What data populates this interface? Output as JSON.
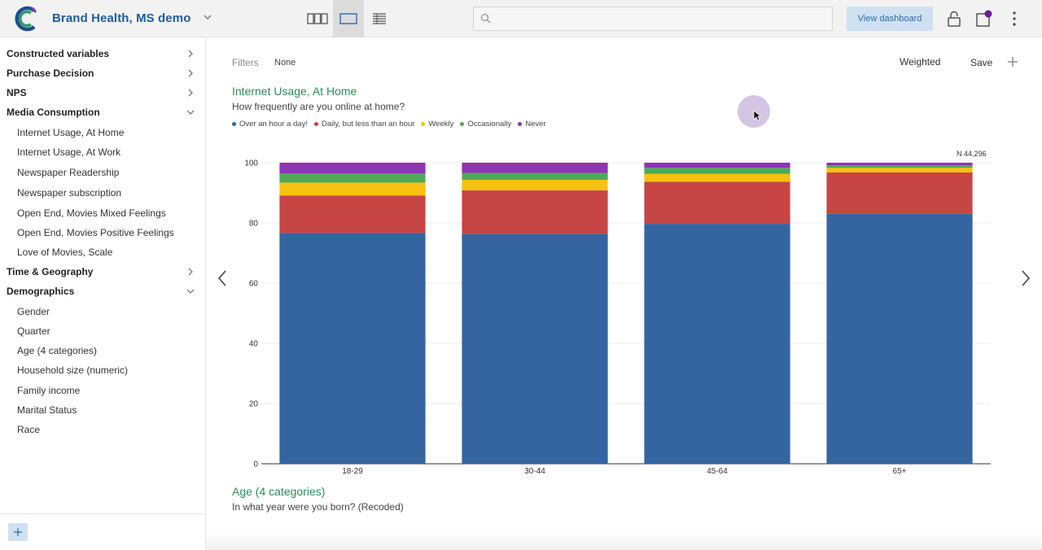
{
  "app": {
    "title": "Brand Health, MS demo"
  },
  "toolbar": {
    "search_placeholder": "",
    "view_dashboard_label": "View dashboard",
    "notification_color": "#6a1b9a"
  },
  "sidebar": {
    "items": [
      {
        "label": "Constructed variables",
        "type": "group",
        "expanded": false
      },
      {
        "label": "Purchase Decision",
        "type": "group",
        "expanded": false
      },
      {
        "label": "NPS",
        "type": "group",
        "expanded": false
      },
      {
        "label": "Media Consumption",
        "type": "group",
        "expanded": true
      },
      {
        "label": "Internet Usage, At Home",
        "type": "child"
      },
      {
        "label": "Internet Usage, At Work",
        "type": "child"
      },
      {
        "label": "Newspaper Readership",
        "type": "child"
      },
      {
        "label": "Newspaper subscription",
        "type": "child"
      },
      {
        "label": "Open End, Movies Mixed Feelings",
        "type": "child"
      },
      {
        "label": "Open End, Movies Positive Feelings",
        "type": "child"
      },
      {
        "label": "Love of Movies, Scale",
        "type": "child"
      },
      {
        "label": "Time & Geography",
        "type": "group",
        "expanded": false
      },
      {
        "label": "Demographics",
        "type": "group",
        "expanded": true
      },
      {
        "label": "Gender",
        "type": "child"
      },
      {
        "label": "Quarter",
        "type": "child"
      },
      {
        "label": "Age (4 categories)",
        "type": "child"
      },
      {
        "label": "Household size (numeric)",
        "type": "child"
      },
      {
        "label": "Family income",
        "type": "child"
      },
      {
        "label": "Marital Status",
        "type": "child"
      },
      {
        "label": "Race",
        "type": "child"
      }
    ]
  },
  "main": {
    "filters_label": "Filters",
    "filters_value": "None",
    "weighted_label": "Weighted",
    "save_label": "Save",
    "next_title": "Age (4 categories)",
    "next_subtitle": "In what year were you born? (Recoded)"
  },
  "chart_data": {
    "type": "bar",
    "stacked": true,
    "title": "Internet Usage, At Home",
    "subtitle": "How frequently are you online at home?",
    "n_label": "N 44,296",
    "categories": [
      "18-29",
      "30-44",
      "45-64",
      "65+"
    ],
    "ylim": [
      0,
      100
    ],
    "yticks": [
      0,
      20,
      40,
      60,
      80,
      100
    ],
    "grid": true,
    "legend_position": "top-left",
    "series": [
      {
        "name": "Over an hour a day!",
        "color": "#3465a0",
        "values": [
          76.7,
          76.4,
          79.7,
          83.0
        ]
      },
      {
        "name": "Daily, but less than an hour",
        "color": "#c64545",
        "values": [
          12.4,
          14.4,
          14.0,
          13.8
        ]
      },
      {
        "name": "Weekly",
        "color": "#f7c10f",
        "values": [
          4.3,
          3.5,
          2.6,
          1.5
        ]
      },
      {
        "name": "Occasionally",
        "color": "#50a85a",
        "values": [
          3.0,
          2.3,
          2.0,
          0.8
        ]
      },
      {
        "name": "Never",
        "color": "#8e34b6",
        "values": [
          3.6,
          3.4,
          1.7,
          0.9
        ]
      }
    ]
  }
}
